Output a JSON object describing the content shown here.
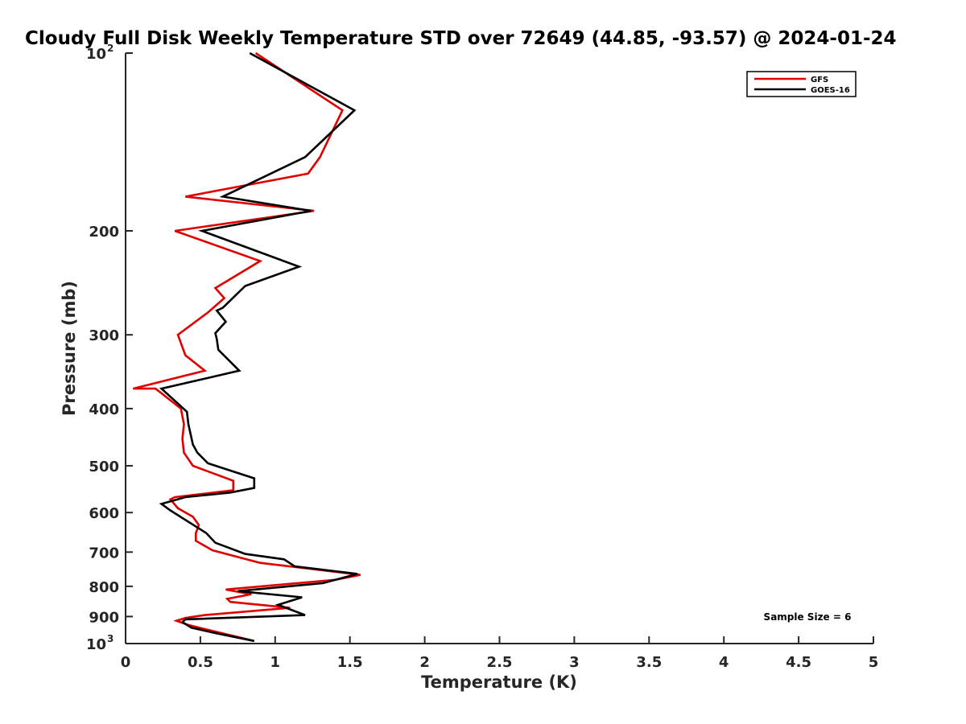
{
  "chart_data": {
    "type": "line",
    "title": "Cloudy Full Disk Weekly Temperature STD over 72649 (44.85, -93.57) @ 2024-01-24",
    "xlabel": "Temperature (K)",
    "ylabel": "Pressure (mb)",
    "xlim": [
      0,
      5
    ],
    "ylim": [
      100,
      1000
    ],
    "y_scale": "log",
    "y_reversed": true,
    "grid": false,
    "legend_position": "top-right",
    "x_ticks": [
      "0",
      "0.5",
      "1",
      "1.5",
      "2",
      "2.5",
      "3",
      "3.5",
      "4",
      "4.5",
      "5"
    ],
    "y_ticks": [
      {
        "value": 100,
        "base": "10",
        "exp": "2"
      },
      {
        "value": 200,
        "label": "200"
      },
      {
        "value": 300,
        "label": "300"
      },
      {
        "value": 400,
        "label": "400"
      },
      {
        "value": 500,
        "label": "500"
      },
      {
        "value": 600,
        "label": "600"
      },
      {
        "value": 700,
        "label": "700"
      },
      {
        "value": 800,
        "label": "800"
      },
      {
        "value": 900,
        "label": "900"
      },
      {
        "value": 1000,
        "base": "10",
        "exp": "3"
      }
    ],
    "annotation": "Sample Size = 6",
    "series": [
      {
        "name": "GFS",
        "color": "#e00000",
        "points": [
          [
            0.87,
            100
          ],
          [
            1.45,
            125
          ],
          [
            1.3,
            150
          ],
          [
            1.22,
            160
          ],
          [
            0.4,
            175
          ],
          [
            1.26,
            185
          ],
          [
            0.33,
            200
          ],
          [
            0.9,
            225
          ],
          [
            0.6,
            250
          ],
          [
            0.66,
            260
          ],
          [
            0.55,
            275
          ],
          [
            0.35,
            300
          ],
          [
            0.4,
            325
          ],
          [
            0.53,
            345
          ],
          [
            0.05,
            370
          ],
          [
            0.2,
            370
          ],
          [
            0.37,
            400
          ],
          [
            0.39,
            425
          ],
          [
            0.38,
            450
          ],
          [
            0.39,
            475
          ],
          [
            0.45,
            500
          ],
          [
            0.72,
            530
          ],
          [
            0.72,
            550
          ],
          [
            0.33,
            565
          ],
          [
            0.3,
            570
          ],
          [
            0.35,
            590
          ],
          [
            0.45,
            610
          ],
          [
            0.49,
            630
          ],
          [
            0.47,
            650
          ],
          [
            0.47,
            670
          ],
          [
            0.58,
            695
          ],
          [
            0.9,
            730
          ],
          [
            1.57,
            765
          ],
          [
            1.4,
            780
          ],
          [
            0.67,
            810
          ],
          [
            0.84,
            825
          ],
          [
            0.68,
            840
          ],
          [
            0.7,
            850
          ],
          [
            1.1,
            870
          ],
          [
            0.53,
            895
          ],
          [
            0.4,
            905
          ],
          [
            0.34,
            915
          ],
          [
            0.42,
            930
          ],
          [
            0.53,
            945
          ],
          [
            0.86,
            990
          ]
        ]
      },
      {
        "name": "GOES-16",
        "color": "#000000",
        "points": [
          [
            0.83,
            100
          ],
          [
            1.53,
            125
          ],
          [
            1.2,
            150
          ],
          [
            0.65,
            175
          ],
          [
            1.24,
            185
          ],
          [
            0.51,
            200
          ],
          [
            1.16,
            230
          ],
          [
            0.8,
            248
          ],
          [
            0.65,
            270
          ],
          [
            0.61,
            273
          ],
          [
            0.67,
            285
          ],
          [
            0.6,
            298
          ],
          [
            0.61,
            305
          ],
          [
            0.62,
            318
          ],
          [
            0.76,
            345
          ],
          [
            0.24,
            370
          ],
          [
            0.41,
            405
          ],
          [
            0.42,
            425
          ],
          [
            0.45,
            460
          ],
          [
            0.48,
            475
          ],
          [
            0.55,
            495
          ],
          [
            0.86,
            525
          ],
          [
            0.86,
            545
          ],
          [
            0.7,
            555
          ],
          [
            0.4,
            565
          ],
          [
            0.24,
            580
          ],
          [
            0.3,
            595
          ],
          [
            0.54,
            650
          ],
          [
            0.6,
            675
          ],
          [
            0.8,
            705
          ],
          [
            1.06,
            720
          ],
          [
            1.13,
            740
          ],
          [
            1.55,
            762
          ],
          [
            1.32,
            790
          ],
          [
            0.75,
            815
          ],
          [
            1.18,
            835
          ],
          [
            1.02,
            860
          ],
          [
            1.2,
            895
          ],
          [
            0.4,
            910
          ],
          [
            0.38,
            920
          ],
          [
            0.44,
            940
          ],
          [
            0.6,
            960
          ],
          [
            0.86,
            990
          ]
        ]
      }
    ]
  }
}
